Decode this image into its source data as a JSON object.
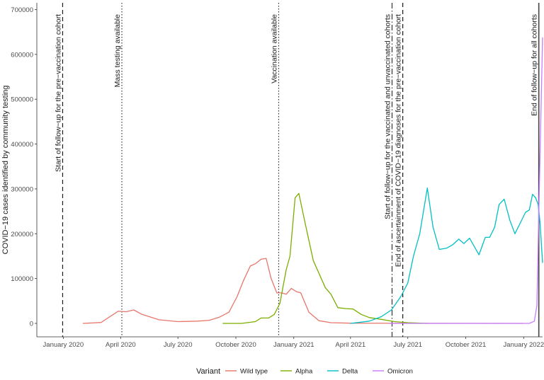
{
  "chart_data": {
    "type": "line",
    "ylabel": "COVID−19 cases identified by community testing",
    "xlabel": "",
    "ylim": [
      -30000,
      715000
    ],
    "xlim": [
      "2019-11-20",
      "2022-01-31"
    ],
    "grid": false,
    "legend": {
      "position": "bottom",
      "title": "Variant"
    },
    "y_ticks": [
      0,
      100000,
      200000,
      300000,
      400000,
      500000,
      600000,
      700000
    ],
    "y_tick_labels": [
      "0",
      "100000",
      "200000",
      "300000",
      "400000",
      "500000",
      "600000",
      "700000"
    ],
    "x_ticks": [
      {
        "date": "2020-01-01",
        "label": "January 2020"
      },
      {
        "date": "2020-04-01",
        "label": "April 2020"
      },
      {
        "date": "2020-07-01",
        "label": "July 2020"
      },
      {
        "date": "2020-10-01",
        "label": "October 2020"
      },
      {
        "date": "2021-01-01",
        "label": "January 2021"
      },
      {
        "date": "2021-04-01",
        "label": "April 2021"
      },
      {
        "date": "2021-07-01",
        "label": "July 2021"
      },
      {
        "date": "2021-10-01",
        "label": "October 2021"
      },
      {
        "date": "2022-01-01",
        "label": "January 2022"
      }
    ],
    "series": [
      {
        "name": "Wild type",
        "color": "#E7766C",
        "points": [
          [
            "2020-02-01",
            0
          ],
          [
            "2020-03-01",
            2000
          ],
          [
            "2020-03-15",
            15000
          ],
          [
            "2020-03-28",
            27000
          ],
          [
            "2020-04-10",
            26000
          ],
          [
            "2020-04-22",
            30000
          ],
          [
            "2020-05-05",
            20000
          ],
          [
            "2020-06-01",
            8000
          ],
          [
            "2020-07-01",
            4000
          ],
          [
            "2020-08-01",
            5000
          ],
          [
            "2020-08-20",
            7000
          ],
          [
            "2020-09-05",
            14000
          ],
          [
            "2020-09-20",
            25000
          ],
          [
            "2020-10-03",
            60000
          ],
          [
            "2020-10-13",
            95000
          ],
          [
            "2020-10-24",
            128000
          ],
          [
            "2020-11-01",
            133000
          ],
          [
            "2020-11-10",
            143000
          ],
          [
            "2020-11-18",
            145000
          ],
          [
            "2020-11-26",
            100000
          ],
          [
            "2020-12-05",
            68000
          ],
          [
            "2020-12-12",
            68000
          ],
          [
            "2020-12-20",
            65000
          ],
          [
            "2020-12-28",
            78000
          ],
          [
            "2021-01-05",
            71000
          ],
          [
            "2021-01-12",
            68000
          ],
          [
            "2021-01-25",
            25000
          ],
          [
            "2021-02-10",
            6000
          ],
          [
            "2021-03-01",
            1500
          ],
          [
            "2021-04-01",
            500
          ],
          [
            "2022-01-01",
            0
          ]
        ]
      },
      {
        "name": "Alpha",
        "color": "#7CAE00",
        "points": [
          [
            "2020-09-10",
            0
          ],
          [
            "2020-10-10",
            0
          ],
          [
            "2020-11-01",
            4000
          ],
          [
            "2020-11-10",
            12000
          ],
          [
            "2020-11-22",
            12000
          ],
          [
            "2020-12-01",
            20000
          ],
          [
            "2020-12-10",
            45000
          ],
          [
            "2020-12-20",
            120000
          ],
          [
            "2020-12-26",
            150000
          ],
          [
            "2021-01-03",
            280000
          ],
          [
            "2021-01-09",
            290000
          ],
          [
            "2021-01-18",
            230000
          ],
          [
            "2021-02-01",
            140000
          ],
          [
            "2021-02-20",
            80000
          ],
          [
            "2021-03-01",
            65000
          ],
          [
            "2021-03-12",
            35000
          ],
          [
            "2021-03-25",
            33000
          ],
          [
            "2021-04-05",
            32000
          ],
          [
            "2021-04-18",
            20000
          ],
          [
            "2021-05-01",
            13000
          ],
          [
            "2021-05-20",
            9000
          ],
          [
            "2021-06-10",
            4000
          ],
          [
            "2021-07-01",
            1500
          ],
          [
            "2021-08-01",
            0
          ]
        ]
      },
      {
        "name": "Delta",
        "color": "#00BFC4",
        "points": [
          [
            "2021-04-01",
            0
          ],
          [
            "2021-05-01",
            5000
          ],
          [
            "2021-05-20",
            15000
          ],
          [
            "2021-06-05",
            30000
          ],
          [
            "2021-06-20",
            60000
          ],
          [
            "2021-07-01",
            90000
          ],
          [
            "2021-07-10",
            150000
          ],
          [
            "2021-07-20",
            200000
          ],
          [
            "2021-08-01",
            302000
          ],
          [
            "2021-08-10",
            215000
          ],
          [
            "2021-08-20",
            165000
          ],
          [
            "2021-09-01",
            168000
          ],
          [
            "2021-09-10",
            175000
          ],
          [
            "2021-09-20",
            188000
          ],
          [
            "2021-09-28",
            178000
          ],
          [
            "2021-10-07",
            190000
          ],
          [
            "2021-10-22",
            153000
          ],
          [
            "2021-11-01",
            192000
          ],
          [
            "2021-11-08",
            192000
          ],
          [
            "2021-11-16",
            215000
          ],
          [
            "2021-11-23",
            265000
          ],
          [
            "2021-12-01",
            277000
          ],
          [
            "2021-12-10",
            230000
          ],
          [
            "2021-12-18",
            200000
          ],
          [
            "2021-12-28",
            228000
          ],
          [
            "2022-01-04",
            248000
          ],
          [
            "2022-01-10",
            253000
          ],
          [
            "2022-01-15",
            288000
          ],
          [
            "2022-01-20",
            280000
          ],
          [
            "2022-01-24",
            265000
          ],
          [
            "2022-01-27",
            225000
          ],
          [
            "2022-01-31",
            135000
          ]
        ]
      },
      {
        "name": "Omicron",
        "color": "#C77CFF",
        "points": [
          [
            "2021-06-01",
            0
          ],
          [
            "2022-01-10",
            0
          ],
          [
            "2022-01-18",
            5000
          ],
          [
            "2022-01-22",
            40000
          ],
          [
            "2022-01-25",
            250000
          ],
          [
            "2022-01-31",
            638000
          ]
        ]
      }
    ],
    "annotations": [
      {
        "date": "2019-12-31",
        "style": "dashed",
        "color": "#1a1a1a",
        "lines": [
          "Start of follow−up for the pre−vaccination cohort"
        ]
      },
      {
        "date": "2020-04-03",
        "style": "dotted",
        "color": "#333333",
        "lines": [
          "Mass testing available"
        ]
      },
      {
        "date": "2020-12-08",
        "style": "dotted",
        "color": "#333333",
        "lines": [
          "Vaccination available"
        ]
      },
      {
        "date": "2021-06-06",
        "style": "dashdot",
        "color": "#333333",
        "lines": [
          "Start of follow−up for the vaccinated and unvaccinated cohorts"
        ]
      },
      {
        "date": "2021-06-23",
        "style": "dashed",
        "color": "#1a1a1a",
        "lines": [
          "End of ascertainment of COVID−19 diagnoses for the pre−vaccination cohort"
        ]
      },
      {
        "date": "2022-01-25",
        "style": "solid",
        "color": "#444444",
        "lines": [
          "End of follow−up for all cohorts"
        ]
      }
    ]
  }
}
